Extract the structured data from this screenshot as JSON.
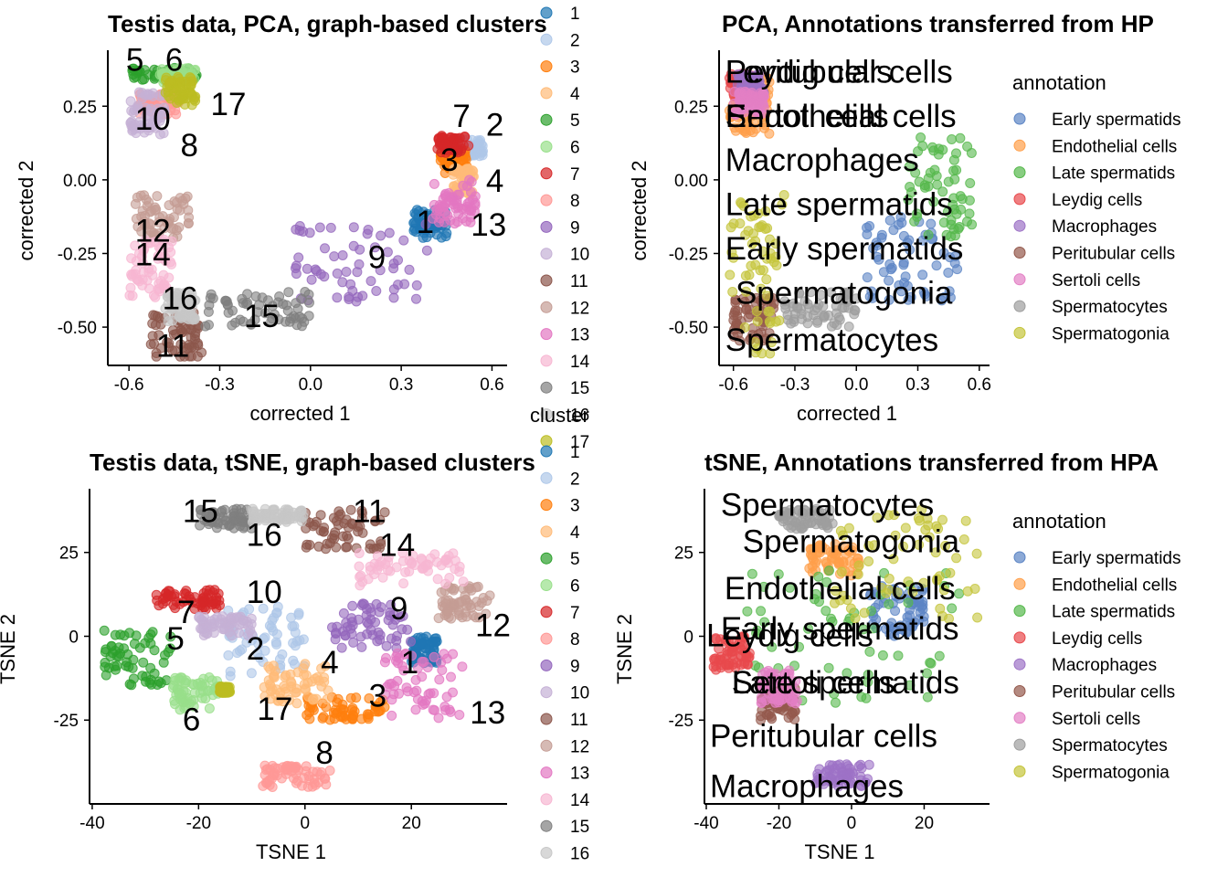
{
  "cluster_legend_title": "cluster",
  "annotation_legend_title": "annotation",
  "cluster_colors": [
    "#1f77b4",
    "#aec7e8",
    "#ff7f0e",
    "#ffbb78",
    "#2ca02c",
    "#98df8a",
    "#d62728",
    "#ff9896",
    "#9467bd",
    "#c5b0d5",
    "#8c564b",
    "#c49c94",
    "#e377c2",
    "#f7b6d2",
    "#7f7f7f",
    "#c7c7c7",
    "#bcbd22"
  ],
  "annotation_colors": [
    "#5b84c4",
    "#ff9f4a",
    "#55b84b",
    "#e8494c",
    "#9d72c6",
    "#94594c",
    "#e37fc4",
    "#9e9e9e",
    "#c4c43b"
  ],
  "chart_data": [
    {
      "type": "scatter",
      "title": "Testis data, PCA, graph-based clusters",
      "xlabel": "corrected 1",
      "ylabel": "corrected 2",
      "xlim": [
        -0.67,
        0.65
      ],
      "ylim": [
        -0.63,
        0.44
      ],
      "xticks": [
        -0.6,
        -0.3,
        0.0,
        0.3,
        0.6
      ],
      "xtick_labels": [
        "-0.6",
        "-0.3",
        "0.0",
        "0.3",
        "0.6"
      ],
      "yticks": [
        0.25,
        0.0,
        -0.25,
        -0.5
      ],
      "ytick_labels": [
        "0.25",
        "0.00",
        "-0.25",
        "-0.50"
      ],
      "legend_placement": "right",
      "series": [
        {
          "name": "1",
          "x": [
            0.34,
            0.45
          ],
          "y": [
            -0.2,
            -0.1
          ]
        },
        {
          "name": "2",
          "x": [
            0.48,
            0.57
          ],
          "y": [
            0.08,
            0.14
          ]
        },
        {
          "name": "3",
          "x": [
            0.43,
            0.52
          ],
          "y": [
            0.02,
            0.1
          ]
        },
        {
          "name": "4",
          "x": [
            0.47,
            0.54
          ],
          "y": [
            -0.05,
            0.04
          ]
        },
        {
          "name": "5",
          "x": [
            -0.59,
            -0.37
          ],
          "y": [
            0.34,
            0.38
          ]
        },
        {
          "name": "6",
          "x": [
            -0.5,
            -0.38
          ],
          "y": [
            0.33,
            0.38
          ]
        },
        {
          "name": "7",
          "x": [
            0.42,
            0.53
          ],
          "y": [
            0.09,
            0.15
          ]
        },
        {
          "name": "8",
          "x": [
            -0.57,
            -0.43
          ],
          "y": [
            0.22,
            0.3
          ]
        },
        {
          "name": "9",
          "x": [
            -0.05,
            0.4
          ],
          "y": [
            -0.42,
            -0.15
          ]
        },
        {
          "name": "10",
          "x": [
            -0.6,
            -0.48
          ],
          "y": [
            0.15,
            0.3
          ]
        },
        {
          "name": "11",
          "x": [
            -0.53,
            -0.36
          ],
          "y": [
            -0.6,
            -0.45
          ]
        },
        {
          "name": "12",
          "x": [
            -0.58,
            -0.4
          ],
          "y": [
            -0.2,
            -0.05
          ]
        },
        {
          "name": "13",
          "x": [
            0.4,
            0.55
          ],
          "y": [
            -0.15,
            0.0
          ]
        },
        {
          "name": "14",
          "x": [
            -0.6,
            -0.45
          ],
          "y": [
            -0.4,
            -0.2
          ]
        },
        {
          "name": "15",
          "x": [
            -0.35,
            0.0
          ],
          "y": [
            -0.5,
            -0.38
          ]
        },
        {
          "name": "16",
          "x": [
            -0.48,
            -0.38
          ],
          "y": [
            -0.48,
            -0.38
          ]
        },
        {
          "name": "17",
          "x": [
            -0.48,
            -0.38
          ],
          "y": [
            0.25,
            0.35
          ]
        }
      ],
      "point_labels": [
        {
          "text": "5",
          "x": -0.61,
          "y": 0.37
        },
        {
          "text": "6",
          "x": -0.48,
          "y": 0.37
        },
        {
          "text": "17",
          "x": -0.33,
          "y": 0.22
        },
        {
          "text": "10",
          "x": -0.58,
          "y": 0.17
        },
        {
          "text": "8",
          "x": -0.43,
          "y": 0.08
        },
        {
          "text": "7",
          "x": 0.47,
          "y": 0.18
        },
        {
          "text": "2",
          "x": 0.58,
          "y": 0.15
        },
        {
          "text": "3",
          "x": 0.43,
          "y": 0.03
        },
        {
          "text": "4",
          "x": 0.58,
          "y": -0.04
        },
        {
          "text": "1",
          "x": 0.35,
          "y": -0.18
        },
        {
          "text": "13",
          "x": 0.53,
          "y": -0.19
        },
        {
          "text": "9",
          "x": 0.19,
          "y": -0.3
        },
        {
          "text": "12",
          "x": -0.58,
          "y": -0.21
        },
        {
          "text": "14",
          "x": -0.58,
          "y": -0.29
        },
        {
          "text": "16",
          "x": -0.49,
          "y": -0.44
        },
        {
          "text": "15",
          "x": -0.22,
          "y": -0.5
        },
        {
          "text": "11",
          "x": -0.51,
          "y": -0.6
        }
      ]
    },
    {
      "type": "scatter",
      "title": "PCA, Annotations transferred from HP",
      "xlabel": "corrected 1",
      "ylabel": "corrected 2",
      "xlim": [
        -0.67,
        0.65
      ],
      "ylim": [
        -0.63,
        0.44
      ],
      "xticks": [
        -0.6,
        -0.3,
        0.0,
        0.3,
        0.6
      ],
      "xtick_labels": [
        "-0.6",
        "-0.3",
        "0.0",
        "0.3",
        "0.6"
      ],
      "yticks": [
        0.25,
        0.0,
        -0.25,
        -0.5
      ],
      "ytick_labels": [
        "0.25",
        "0.00",
        "-0.25",
        "-0.50"
      ],
      "legend_placement": "right",
      "series": [
        {
          "name": "Early spermatids",
          "x": [
            0.05,
            0.5
          ],
          "y": [
            -0.42,
            -0.12
          ]
        },
        {
          "name": "Endothelial cells",
          "x": [
            -0.62,
            -0.42
          ],
          "y": [
            0.15,
            0.35
          ]
        },
        {
          "name": "Late spermatids",
          "x": [
            0.25,
            0.58
          ],
          "y": [
            -0.2,
            0.15
          ]
        },
        {
          "name": "Leydig cells",
          "x": [
            -0.62,
            -0.5
          ],
          "y": [
            0.28,
            0.36
          ]
        },
        {
          "name": "Macrophages",
          "x": [
            -0.58,
            -0.45
          ],
          "y": [
            0.28,
            0.36
          ]
        },
        {
          "name": "Peritubular cells",
          "x": [
            -0.6,
            -0.4
          ],
          "y": [
            -0.55,
            -0.4
          ]
        },
        {
          "name": "Sertoli cells",
          "x": [
            -0.6,
            -0.45
          ],
          "y": [
            0.22,
            0.3
          ]
        },
        {
          "name": "Spermatocytes",
          "x": [
            -0.35,
            0.0
          ],
          "y": [
            -0.5,
            -0.38
          ]
        },
        {
          "name": "Spermatogonia",
          "x": [
            -0.62,
            -0.35
          ],
          "y": [
            -0.6,
            -0.05
          ]
        }
      ],
      "point_labels": [
        {
          "text": "Peritubular cells",
          "x": -0.64,
          "y": 0.33
        },
        {
          "text": "Leydig cells",
          "x": -0.64,
          "y": 0.33
        },
        {
          "text": "Endothelial cells",
          "x": -0.64,
          "y": 0.18
        },
        {
          "text": "Sertoli cells",
          "x": -0.64,
          "y": 0.18
        },
        {
          "text": "Macrophages",
          "x": -0.64,
          "y": 0.03
        },
        {
          "text": "Late spermatids",
          "x": -0.64,
          "y": -0.12
        },
        {
          "text": "Early spermatids",
          "x": -0.64,
          "y": -0.27
        },
        {
          "text": "Spermatogonia",
          "x": -0.59,
          "y": -0.42
        },
        {
          "text": "Spermatocytes",
          "x": -0.64,
          "y": -0.58
        }
      ]
    },
    {
      "type": "scatter",
      "title": "Testis data, tSNE, graph-based clusters",
      "xlabel": "TSNE 1",
      "ylabel": "TSNE 2",
      "xlim": [
        -40.5,
        38
      ],
      "ylim": [
        -50,
        44
      ],
      "xticks": [
        -40,
        -20,
        0,
        20
      ],
      "xtick_labels": [
        "-40",
        "-20",
        "0",
        "20"
      ],
      "yticks": [
        25,
        0,
        -25
      ],
      "ytick_labels": [
        "25",
        "0",
        "-25"
      ],
      "legend_placement": "right",
      "series": [
        {
          "name": "1",
          "x": [
            20,
            25
          ],
          "y": [
            -8,
            0
          ]
        },
        {
          "name": "2",
          "x": [
            -15,
            0
          ],
          "y": [
            -12,
            10
          ]
        },
        {
          "name": "3",
          "x": [
            0,
            15
          ],
          "y": [
            -25,
            -18
          ]
        },
        {
          "name": "4",
          "x": [
            -8,
            5
          ],
          "y": [
            -20,
            -8
          ]
        },
        {
          "name": "5",
          "x": [
            -38,
            -25
          ],
          "y": [
            -15,
            2
          ]
        },
        {
          "name": "6",
          "x": [
            -25,
            -15
          ],
          "y": [
            -22,
            -12
          ]
        },
        {
          "name": "7",
          "x": [
            -28,
            -15
          ],
          "y": [
            8,
            14
          ]
        },
        {
          "name": "8",
          "x": [
            -8,
            5
          ],
          "y": [
            -45,
            -38
          ]
        },
        {
          "name": "9",
          "x": [
            5,
            20
          ],
          "y": [
            -4,
            10
          ]
        },
        {
          "name": "10",
          "x": [
            -20,
            -10
          ],
          "y": [
            0,
            6
          ]
        },
        {
          "name": "11",
          "x": [
            0,
            15
          ],
          "y": [
            26,
            38
          ]
        },
        {
          "name": "12",
          "x": [
            25,
            35
          ],
          "y": [
            5,
            15
          ]
        },
        {
          "name": "13",
          "x": [
            15,
            30
          ],
          "y": [
            -25,
            -5
          ]
        },
        {
          "name": "14",
          "x": [
            10,
            30
          ],
          "y": [
            15,
            25
          ]
        },
        {
          "name": "15",
          "x": [
            -20,
            -10
          ],
          "y": [
            32,
            38
          ]
        },
        {
          "name": "16",
          "x": [
            -10,
            0
          ],
          "y": [
            34,
            38
          ]
        },
        {
          "name": "17",
          "x": [
            -16,
            -14
          ],
          "y": [
            -17,
            -15
          ]
        }
      ],
      "point_labels": [
        {
          "text": "15",
          "x": -23,
          "y": 34
        },
        {
          "text": "16",
          "x": -11,
          "y": 27
        },
        {
          "text": "11",
          "x": 9,
          "y": 34
        },
        {
          "text": "14",
          "x": 14,
          "y": 24
        },
        {
          "text": "10",
          "x": -11,
          "y": 10
        },
        {
          "text": "7",
          "x": -24,
          "y": 4
        },
        {
          "text": "9",
          "x": 16,
          "y": 5
        },
        {
          "text": "12",
          "x": 32,
          "y": 0
        },
        {
          "text": "5",
          "x": -26,
          "y": -4
        },
        {
          "text": "2",
          "x": -11,
          "y": -7
        },
        {
          "text": "4",
          "x": 3,
          "y": -11
        },
        {
          "text": "1",
          "x": 18,
          "y": -11
        },
        {
          "text": "3",
          "x": 12,
          "y": -21
        },
        {
          "text": "13",
          "x": 31,
          "y": -26
        },
        {
          "text": "17",
          "x": -9,
          "y": -25
        },
        {
          "text": "6",
          "x": -23,
          "y": -28
        },
        {
          "text": "8",
          "x": 2,
          "y": -38
        }
      ]
    },
    {
      "type": "scatter",
      "title": "tSNE, Annotations transferred from HPA",
      "xlabel": "TSNE 1",
      "ylabel": "TSNE 2",
      "xlim": [
        -40.5,
        38
      ],
      "ylim": [
        -50,
        44
      ],
      "xticks": [
        -40,
        -20,
        0,
        20
      ],
      "xtick_labels": [
        "-40",
        "-20",
        "0",
        "20"
      ],
      "yticks": [
        25,
        0,
        -25
      ],
      "ytick_labels": [
        "25",
        "0",
        "-25"
      ],
      "legend_placement": "right",
      "series": [
        {
          "name": "Early spermatids",
          "x": [
            5,
            20
          ],
          "y": [
            0,
            15
          ]
        },
        {
          "name": "Endothelial cells",
          "x": [
            -12,
            2
          ],
          "y": [
            18,
            28
          ]
        },
        {
          "name": "Late spermatids",
          "x": [
            -30,
            30
          ],
          "y": [
            -20,
            20
          ]
        },
        {
          "name": "Leydig cells",
          "x": [
            -38,
            -28
          ],
          "y": [
            -10,
            0
          ]
        },
        {
          "name": "Macrophages",
          "x": [
            -10,
            5
          ],
          "y": [
            -45,
            -38
          ]
        },
        {
          "name": "Peritubular cells",
          "x": [
            -25,
            -15
          ],
          "y": [
            -25,
            -15
          ]
        },
        {
          "name": "Sertoli cells",
          "x": [
            -25,
            -15
          ],
          "y": [
            -20,
            -10
          ]
        },
        {
          "name": "Spermatocytes",
          "x": [
            -20,
            -5
          ],
          "y": [
            32,
            38
          ]
        },
        {
          "name": "Spermatogonia",
          "x": [
            -5,
            35
          ],
          "y": [
            5,
            38
          ]
        }
      ],
      "point_labels": [
        {
          "text": "Spermatocytes",
          "x": -36,
          "y": 36
        },
        {
          "text": "Spermatogonia",
          "x": -30,
          "y": 25
        },
        {
          "text": "Endothelial cells",
          "x": -35,
          "y": 11
        },
        {
          "text": "Early spermatids",
          "x": -36,
          "y": -1
        },
        {
          "text": "Leydig cells",
          "x": -40,
          "y": -3
        },
        {
          "text": "Late spermatids",
          "x": -33,
          "y": -17
        },
        {
          "text": "Sertoli cells",
          "x": -33,
          "y": -17
        },
        {
          "text": "Peritubular cells",
          "x": -39,
          "y": -33
        },
        {
          "text": "Macrophages",
          "x": -39,
          "y": -48
        }
      ]
    }
  ]
}
